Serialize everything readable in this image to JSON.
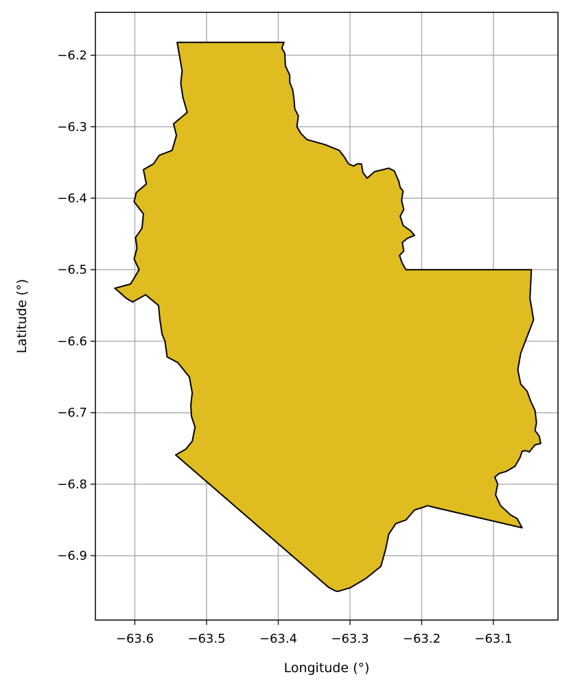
{
  "chart_data": {
    "type": "map",
    "xlabel": "Longitude (°)",
    "ylabel": "Latitude (°)",
    "xlim": [
      -63.655,
      -63.01
    ],
    "ylim": [
      -6.99,
      -6.14
    ],
    "xticks": [
      -63.6,
      -63.5,
      -63.4,
      -63.3,
      -63.2,
      -63.1
    ],
    "yticks": [
      -6.2,
      -6.3,
      -6.4,
      -6.5,
      -6.6,
      -6.7,
      -6.8,
      -6.9
    ],
    "xtick_labels": [
      "−63.6",
      "−63.5",
      "−63.4",
      "−63.3",
      "−63.2",
      "−63.1"
    ],
    "ytick_labels": [
      "−6.2",
      "−6.3",
      "−6.4",
      "−6.5",
      "−6.6",
      "−6.7",
      "−6.8",
      "−6.9"
    ],
    "grid": true,
    "fill_color": "#DFBC20",
    "edge_color": "#000000",
    "polygon": [
      [
        -63.541,
        -6.182
      ],
      [
        -63.392,
        -6.182
      ],
      [
        -63.395,
        -6.19
      ],
      [
        -63.391,
        -6.197
      ],
      [
        -63.39,
        -6.215
      ],
      [
        -63.384,
        -6.228
      ],
      [
        -63.384,
        -6.238
      ],
      [
        -63.38,
        -6.248
      ],
      [
        -63.378,
        -6.262
      ],
      [
        -63.377,
        -6.275
      ],
      [
        -63.372,
        -6.285
      ],
      [
        -63.374,
        -6.3
      ],
      [
        -63.368,
        -6.31
      ],
      [
        -63.36,
        -6.318
      ],
      [
        -63.335,
        -6.325
      ],
      [
        -63.315,
        -6.333
      ],
      [
        -63.308,
        -6.342
      ],
      [
        -63.302,
        -6.352
      ],
      [
        -63.295,
        -6.355
      ],
      [
        -63.29,
        -6.352
      ],
      [
        -63.284,
        -6.352
      ],
      [
        -63.282,
        -6.364
      ],
      [
        -63.276,
        -6.372
      ],
      [
        -63.266,
        -6.363
      ],
      [
        -63.246,
        -6.358
      ],
      [
        -63.238,
        -6.362
      ],
      [
        -63.232,
        -6.376
      ],
      [
        -63.23,
        -6.385
      ],
      [
        -63.226,
        -6.39
      ],
      [
        -63.228,
        -6.403
      ],
      [
        -63.225,
        -6.416
      ],
      [
        -63.23,
        -6.425
      ],
      [
        -63.226,
        -6.438
      ],
      [
        -63.215,
        -6.446
      ],
      [
        -63.21,
        -6.452
      ],
      [
        -63.22,
        -6.456
      ],
      [
        -63.227,
        -6.462
      ],
      [
        -63.225,
        -6.474
      ],
      [
        -63.231,
        -6.48
      ],
      [
        -63.227,
        -6.491
      ],
      [
        -63.222,
        -6.5
      ],
      [
        -63.047,
        -6.5
      ],
      [
        -63.049,
        -6.54
      ],
      [
        -63.044,
        -6.57
      ],
      [
        -63.062,
        -6.617
      ],
      [
        -63.066,
        -6.64
      ],
      [
        -63.062,
        -6.66
      ],
      [
        -63.053,
        -6.67
      ],
      [
        -63.048,
        -6.684
      ],
      [
        -63.042,
        -6.697
      ],
      [
        -63.04,
        -6.714
      ],
      [
        -63.042,
        -6.725
      ],
      [
        -63.036,
        -6.733
      ],
      [
        -63.034,
        -6.743
      ],
      [
        -63.042,
        -6.745
      ],
      [
        -63.05,
        -6.755
      ],
      [
        -63.055,
        -6.753
      ],
      [
        -63.06,
        -6.754
      ],
      [
        -63.063,
        -6.763
      ],
      [
        -63.07,
        -6.775
      ],
      [
        -63.082,
        -6.782
      ],
      [
        -63.092,
        -6.785
      ],
      [
        -63.098,
        -6.79
      ],
      [
        -63.094,
        -6.8
      ],
      [
        -63.097,
        -6.815
      ],
      [
        -63.09,
        -6.83
      ],
      [
        -63.076,
        -6.843
      ],
      [
        -63.067,
        -6.848
      ],
      [
        -63.06,
        -6.861
      ],
      [
        -63.18,
        -6.833
      ],
      [
        -63.192,
        -6.83
      ],
      [
        -63.197,
        -6.832
      ],
      [
        -63.21,
        -6.836
      ],
      [
        -63.222,
        -6.85
      ],
      [
        -63.236,
        -6.855
      ],
      [
        -63.246,
        -6.87
      ],
      [
        -63.25,
        -6.89
      ],
      [
        -63.257,
        -6.915
      ],
      [
        -63.278,
        -6.932
      ],
      [
        -63.3,
        -6.945
      ],
      [
        -63.317,
        -6.95
      ],
      [
        -63.321,
        -6.949
      ],
      [
        -63.33,
        -6.944
      ],
      [
        -63.543,
        -6.759
      ],
      [
        -63.529,
        -6.751
      ],
      [
        -63.52,
        -6.74
      ],
      [
        -63.516,
        -6.72
      ],
      [
        -63.521,
        -6.705
      ],
      [
        -63.522,
        -6.69
      ],
      [
        -63.52,
        -6.672
      ],
      [
        -63.524,
        -6.65
      ],
      [
        -63.54,
        -6.63
      ],
      [
        -63.555,
        -6.622
      ],
      [
        -63.558,
        -6.6
      ],
      [
        -63.562,
        -6.59
      ],
      [
        -63.565,
        -6.57
      ],
      [
        -63.567,
        -6.55
      ],
      [
        -63.585,
        -6.535
      ],
      [
        -63.603,
        -6.545
      ],
      [
        -63.612,
        -6.54
      ],
      [
        -63.623,
        -6.53
      ],
      [
        -63.628,
        -6.526
      ],
      [
        -63.606,
        -6.52
      ],
      [
        -63.6,
        -6.51
      ],
      [
        -63.594,
        -6.5
      ],
      [
        -63.601,
        -6.485
      ],
      [
        -63.597,
        -6.47
      ],
      [
        -63.599,
        -6.455
      ],
      [
        -63.59,
        -6.442
      ],
      [
        -63.588,
        -6.422
      ],
      [
        -63.601,
        -6.405
      ],
      [
        -63.598,
        -6.392
      ],
      [
        -63.584,
        -6.38
      ],
      [
        -63.588,
        -6.36
      ],
      [
        -63.574,
        -6.352
      ],
      [
        -63.566,
        -6.34
      ],
      [
        -63.548,
        -6.333
      ],
      [
        -63.542,
        -6.312
      ],
      [
        -63.546,
        -6.296
      ],
      [
        -63.527,
        -6.28
      ],
      [
        -63.533,
        -6.259
      ],
      [
        -63.536,
        -6.239
      ],
      [
        -63.534,
        -6.222
      ],
      [
        -63.537,
        -6.205
      ],
      [
        -63.541,
        -6.182
      ]
    ]
  }
}
